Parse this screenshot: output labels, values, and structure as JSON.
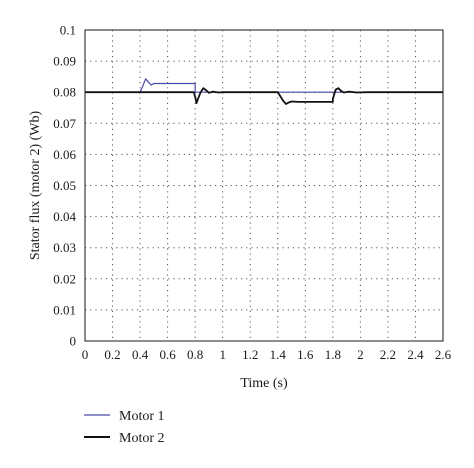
{
  "chart_data": {
    "type": "line",
    "xlabel": "Time (s)",
    "ylabel": "Stator flux (motor 2) (Wb)",
    "xlim": [
      0,
      2.6
    ],
    "ylim": [
      0,
      0.1
    ],
    "x_ticks": [
      "0",
      "0.2",
      "0.4",
      "0.6",
      "0.8",
      "1",
      "1.2",
      "1.4",
      "1.6",
      "1.8",
      "2",
      "2.2",
      "2.4",
      "2.6"
    ],
    "y_ticks": [
      "0",
      "0.01",
      "0.02",
      "0.03",
      "0.04",
      "0.05",
      "0.06",
      "0.07",
      "0.08",
      "0.09",
      "0.1"
    ],
    "grid": true,
    "legend_position": "bottom-left, below plot",
    "series": [
      {
        "name": "Motor 1",
        "color": "#4a4aa8",
        "x": [
          0,
          0.4,
          0.42,
          0.44,
          0.46,
          0.48,
          0.5,
          0.8,
          0.8,
          2.1
        ],
        "y": [
          0.08,
          0.08,
          0.082,
          0.0843,
          0.0833,
          0.0823,
          0.0828,
          0.0828,
          0.08,
          0.08
        ]
      },
      {
        "name": "Motor 2",
        "color": "#111111",
        "x": [
          0,
          0.79,
          0.8,
          0.81,
          0.82,
          0.84,
          0.86,
          0.88,
          0.9,
          0.93,
          0.97,
          1.0,
          1.1,
          1.2,
          1.4,
          1.44,
          1.46,
          1.48,
          1.5,
          1.55,
          1.8,
          1.8,
          1.81,
          1.82,
          1.84,
          1.86,
          1.88,
          1.92,
          1.97,
          2.05,
          2.6
        ],
        "y": [
          0.08,
          0.08,
          0.0785,
          0.0765,
          0.0778,
          0.08,
          0.0813,
          0.0806,
          0.0798,
          0.0802,
          0.0799,
          0.08,
          0.08,
          0.08,
          0.08,
          0.0772,
          0.0762,
          0.0767,
          0.077,
          0.0769,
          0.0769,
          0.0778,
          0.0793,
          0.0808,
          0.0813,
          0.0804,
          0.0799,
          0.0802,
          0.0799,
          0.08,
          0.08
        ]
      }
    ]
  }
}
